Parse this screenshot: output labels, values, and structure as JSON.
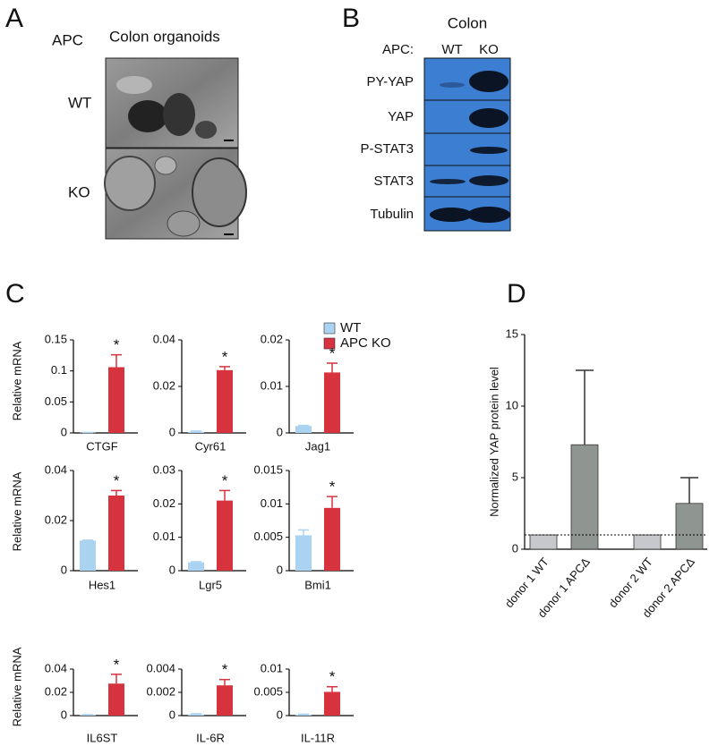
{
  "panel_a": {
    "label": "A",
    "row_header": "APC",
    "title": "Colon organoids",
    "rows": [
      "WT",
      "KO"
    ]
  },
  "panel_b": {
    "label": "B",
    "title": "Colon",
    "column_header": "APC:",
    "columns": [
      "WT",
      "KO"
    ],
    "rows": [
      "PY-YAP",
      "YAP",
      "P-STAT3",
      "STAT3",
      "Tubulin"
    ]
  },
  "panel_c": {
    "label": "C",
    "legend": [
      {
        "name": "WT",
        "color": "#a9d3f1"
      },
      {
        "name": "APC KO",
        "color": "#d6333e"
      }
    ]
  },
  "panel_d": {
    "label": "D"
  },
  "chart_data": [
    {
      "type": "bar",
      "ylabel": "Relative mRNA",
      "xlabel": "CTGF",
      "values": [
        0.0005,
        0.106
      ],
      "errors": [
        0.0003,
        0.02
      ],
      "annotation": "*",
      "ylim": [
        0,
        0.15
      ],
      "yticks": [
        0,
        0.05,
        0.1,
        0.15
      ]
    },
    {
      "type": "bar",
      "xlabel": "Cyr61",
      "values": [
        0.0005,
        0.027
      ],
      "errors": [
        0.0003,
        0.0015
      ],
      "annotation": "*",
      "ylim": [
        0,
        0.04
      ],
      "yticks": [
        0,
        0.02,
        0.04
      ]
    },
    {
      "type": "bar",
      "xlabel": "Jag1",
      "values": [
        0.0015,
        0.013
      ],
      "errors": [
        0.0001,
        0.002
      ],
      "annotation": "*",
      "ylim": [
        0,
        0.02
      ],
      "yticks": [
        0,
        0.01,
        0.02
      ]
    },
    {
      "type": "bar",
      "ylabel": "Relative mRNA",
      "xlabel": "Hes1",
      "values": [
        0.012,
        0.03
      ],
      "errors": [
        0.0002,
        0.002
      ],
      "annotation": "*",
      "ylim": [
        0,
        0.04
      ],
      "yticks": [
        0,
        0.02,
        0.04
      ]
    },
    {
      "type": "bar",
      "xlabel": "Lgr5",
      "values": [
        0.0025,
        0.021
      ],
      "errors": [
        0.0002,
        0.003
      ],
      "annotation": "*",
      "ylim": [
        0,
        0.03
      ],
      "yticks": [
        0,
        0.01,
        0.02,
        0.03
      ]
    },
    {
      "type": "bar",
      "xlabel": "Bmi1",
      "values": [
        0.0053,
        0.0094
      ],
      "errors": [
        0.0008,
        0.0017
      ],
      "annotation": "*",
      "ylim": [
        0,
        0.015
      ],
      "yticks": [
        0,
        0.005,
        0.01,
        0.015
      ]
    },
    {
      "type": "bar",
      "ylabel": "Relative mRNA",
      "xlabel": "IL6ST",
      "values": [
        0.0005,
        0.0275
      ],
      "errors": [
        0.0003,
        0.008
      ],
      "annotation": "*",
      "ylim": [
        0,
        0.04
      ],
      "yticks": [
        0,
        0.02,
        0.04
      ]
    },
    {
      "type": "bar",
      "xlabel": "IL-6R",
      "values": [
        0.0001,
        0.0026
      ],
      "errors": [
        5e-05,
        0.0005
      ],
      "annotation": "*",
      "ylim": [
        0,
        0.004
      ],
      "yticks": [
        0,
        0.002,
        0.004
      ]
    },
    {
      "type": "bar",
      "xlabel": "IL-11R",
      "values": [
        0.0002,
        0.0051
      ],
      "errors": [
        0.0001,
        0.0011
      ],
      "annotation": "*",
      "ylim": [
        0,
        0.01
      ],
      "yticks": [
        0,
        0.005,
        0.01
      ]
    },
    {
      "type": "bar",
      "ylabel": "Normalized YAP protein level",
      "categories": [
        "donor 1 WT",
        "donor 1 APCΔ",
        "donor 2 WT",
        "donor 2 APCΔ"
      ],
      "values": [
        1,
        7.3,
        1,
        3.2
      ],
      "errors": [
        null,
        5.2,
        null,
        1.8
      ],
      "colors": [
        "#c6c8cc",
        "#8f9692",
        "#c6c8cc",
        "#8f9692"
      ],
      "reference_line": 1,
      "ylim": [
        0,
        15
      ],
      "yticks": [
        0,
        5,
        10,
        15
      ]
    }
  ]
}
